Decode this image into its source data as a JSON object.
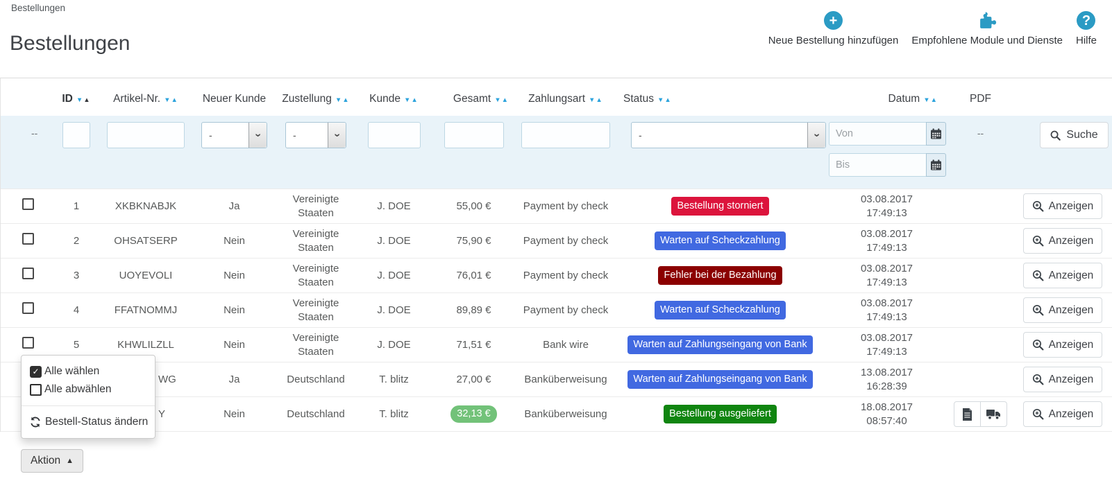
{
  "breadcrumb": "Bestellungen",
  "title": "Bestellungen",
  "header_actions": [
    {
      "label": "Neue Bestellung hinzufügen",
      "icon": "plus-circle-icon"
    },
    {
      "label": "Empfohlene Module und Dienste",
      "icon": "puzzle-icon"
    },
    {
      "label": "Hilfe",
      "icon": "question-circle-icon"
    }
  ],
  "colors": {
    "accent_teal": "#2B9BC4",
    "sort_arrow_blue": "#2CA3DC",
    "price_badge_green": "#72C279",
    "status_cancelled_red": "#DC143C",
    "status_waiting_blue": "#4169E1",
    "status_error_darkred": "#8B0000",
    "status_delivered_green": "#108510",
    "filter_row_background": "#E9F3F9"
  },
  "table": {
    "columns": [
      {
        "key": "check",
        "label": "",
        "sortable": false
      },
      {
        "key": "id",
        "label": "ID",
        "sortable": true,
        "bold": true,
        "active_sort": "asc"
      },
      {
        "key": "ref",
        "label": "Artikel-Nr.",
        "sortable": true
      },
      {
        "key": "new",
        "label": "Neuer Kunde",
        "sortable": false
      },
      {
        "key": "del",
        "label": "Zustellung",
        "sortable": true
      },
      {
        "key": "cust",
        "label": "Kunde",
        "sortable": true
      },
      {
        "key": "total",
        "label": "Gesamt",
        "sortable": true
      },
      {
        "key": "pay",
        "label": "Zahlungsart",
        "sortable": true
      },
      {
        "key": "status",
        "label": "Status",
        "sortable": true
      },
      {
        "key": "date",
        "label": "Datum",
        "sortable": true
      },
      {
        "key": "pdf",
        "label": "PDF",
        "sortable": false
      },
      {
        "key": "act",
        "label": "",
        "sortable": false
      }
    ],
    "filter": {
      "no_filter_dash": "--",
      "new_customer_value": "-",
      "delivery_value": "-",
      "status_value": "-",
      "date_from_placeholder": "Von",
      "date_to_placeholder": "Bis",
      "pdf_dash": "--",
      "search_label": "Suche"
    },
    "row_action_label": "Anzeigen",
    "rows": [
      {
        "id": "1",
        "reference": "XKBKNABJK",
        "new_customer": "Ja",
        "delivery": "Vereinigte Staaten",
        "customer": "J. DOE",
        "total": "55,00 €",
        "payment": "Payment by check",
        "status": {
          "label": "Bestellung storniert",
          "color": "#DC143C"
        },
        "date": "03.08.2017",
        "time": "17:49:13",
        "pdf": []
      },
      {
        "id": "2",
        "reference": "OHSATSERP",
        "new_customer": "Nein",
        "delivery": "Vereinigte Staaten",
        "customer": "J. DOE",
        "total": "75,90 €",
        "payment": "Payment by check",
        "status": {
          "label": "Warten auf Scheckzahlung",
          "color": "#4169E1"
        },
        "date": "03.08.2017",
        "time": "17:49:13",
        "pdf": []
      },
      {
        "id": "3",
        "reference": "UOYEVOLI",
        "new_customer": "Nein",
        "delivery": "Vereinigte Staaten",
        "customer": "J. DOE",
        "total": "76,01 €",
        "payment": "Payment by check",
        "status": {
          "label": "Fehler bei der Bezahlung",
          "color": "#8B0000"
        },
        "date": "03.08.2017",
        "time": "17:49:13",
        "pdf": []
      },
      {
        "id": "4",
        "reference": "FFATNOMMJ",
        "new_customer": "Nein",
        "delivery": "Vereinigte Staaten",
        "customer": "J. DOE",
        "total": "89,89 €",
        "payment": "Payment by check",
        "status": {
          "label": "Warten auf Scheckzahlung",
          "color": "#4169E1"
        },
        "date": "03.08.2017",
        "time": "17:49:13",
        "pdf": []
      },
      {
        "id": "5",
        "reference": "KHWLILZLL",
        "new_customer": "Nein",
        "delivery": "Vereinigte Staaten",
        "customer": "J. DOE",
        "total": "71,51 €",
        "payment": "Bank wire",
        "status": {
          "label": "Warten auf Zahlungseingang von Bank",
          "color": "#4169E1"
        },
        "date": "03.08.2017",
        "time": "17:49:13",
        "pdf": []
      },
      {
        "id": "",
        "reference": "WG",
        "obscured": true,
        "new_customer": "Ja",
        "delivery": "Deutschland",
        "customer": "T. blitz",
        "total": "27,00 €",
        "payment": "Banküberweisung",
        "status": {
          "label": "Warten auf Zahlungseingang von Bank",
          "color": "#4169E1"
        },
        "date": "13.08.2017",
        "time": "16:28:39",
        "pdf": []
      },
      {
        "id": "",
        "reference": "Y",
        "obscured": true,
        "new_customer": "Nein",
        "delivery": "Deutschland",
        "customer": "T. blitz",
        "total": "32,13 €",
        "total_badge": true,
        "payment": "Banküberweisung",
        "status": {
          "label": "Bestellung ausgeliefert",
          "color": "#108510"
        },
        "date": "18.08.2017",
        "time": "08:57:40",
        "pdf": [
          "invoice",
          "delivery"
        ]
      }
    ]
  },
  "bulk_menu": {
    "items": [
      {
        "label": "Alle wählen",
        "icon": "checked-checkbox-icon"
      },
      {
        "label": "Alle abwählen",
        "icon": "unchecked-checkbox-icon"
      },
      {
        "label": "Bestell-Status ändern",
        "icon": "refresh-icon"
      }
    ]
  },
  "bulk_button": {
    "label": "Aktion"
  }
}
